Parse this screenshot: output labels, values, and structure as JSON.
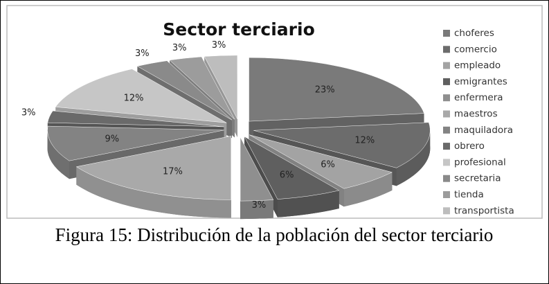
{
  "chart_data": {
    "type": "pie",
    "title": "Sector terciario",
    "caption": "Figura 15: Distribución de la población del sector terciario",
    "categories": [
      "choferes",
      "comercio",
      "empleado",
      "emigrantes",
      "enfermera",
      "maestros",
      "maquiladora",
      "obrero",
      "profesional",
      "secretaria",
      "tienda",
      "transportista"
    ],
    "values": [
      23,
      12,
      6,
      6,
      3,
      17,
      9,
      3,
      12,
      3,
      3,
      3
    ],
    "value_labels": [
      "23%",
      "12%",
      "6%",
      "6%",
      "3%",
      "17%",
      "9%",
      "3%",
      "12%",
      "3%",
      "3%",
      "3%"
    ],
    "colors": [
      "#7a7a7a",
      "#6c6c6c",
      "#a3a3a3",
      "#5f5f5f",
      "#8f8f8f",
      "#a9a9a9",
      "#838383",
      "#6a6a6a",
      "#c6c6c6",
      "#8a8a8a",
      "#9c9c9c",
      "#bdbdbd"
    ],
    "legend": "right"
  }
}
